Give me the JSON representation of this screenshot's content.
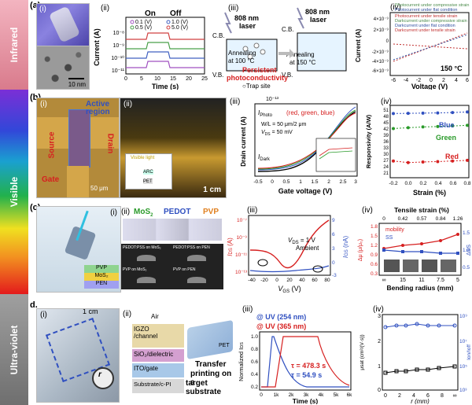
{
  "bands": {
    "infrared": "Infrared",
    "visible": "Visible",
    "ultraviolet": "Ultra-violet"
  },
  "colors": {
    "infrared_band": "#d97b8c",
    "visible_top": "#8a2be2",
    "visible_mid": "#27b34a",
    "visible_bot": "#e31a1c",
    "uv_band": "#8c8c8c"
  },
  "panel_a": {
    "letter": "(a)",
    "sub_i": "(i)",
    "sub_ii": "(ii)",
    "sub_iii": "(iii)",
    "sub_iv": "(iv)",
    "scalebar": "10 nm",
    "ii": {
      "on": "On",
      "off": "Off",
      "xlabel": "Time (s)",
      "ylabel": "Current (A)",
      "legend": [
        "0.1 (V)",
        "1.0 (V)",
        "0.5 (V)",
        "5.0 (V)"
      ],
      "xticks": [
        "0",
        "5",
        "10",
        "15",
        "20",
        "25"
      ],
      "yticks": [
        "10⁻⁸",
        "10⁻⁹",
        "10⁻¹⁰",
        "10⁻¹¹"
      ]
    },
    "iii": {
      "laser1": "808 nm",
      "laser1b": "laser",
      "laser2": "808 nm",
      "laser2b": "laser",
      "cb1": "C.B.",
      "vb1": "V.B.",
      "cb2": "C.B.",
      "vb2": "V.B.",
      "anneal1": "Annealing",
      "anneal1b": "at 100 °C",
      "anneal2": "Annealing",
      "anneal2b": "at 150 °C",
      "ppc1": "Persistent",
      "ppc2": "photoconductivity",
      "trap": "○Trap site"
    },
    "iv": {
      "legend": [
        "Photocurrent under compressive strain",
        "Photocurrent under flat condition",
        "Photocurrent under tensile strain",
        "Darkcurrent under compressive strain",
        "Darkcurrent under flat condition",
        "Darkcurrent under tensile strain"
      ],
      "ylabel": "Current (A)",
      "xlabel": "Voltage (V)",
      "temp": "150 °C",
      "yticks": [
        "4×10⁻⁹",
        "2×10⁻⁹",
        "0",
        "-2×10⁻⁹",
        "-4×10⁻⁹",
        "-6×10⁻⁹"
      ],
      "xticks": [
        "-6",
        "-4",
        "-2",
        "0",
        "2",
        "4",
        "6"
      ]
    }
  },
  "panel_b": {
    "letter": "(b)",
    "sub_i": "(i)",
    "sub_ii": "(ii)",
    "sub_iii": "(iii)",
    "sub_iv": "(iv)",
    "source": "Source",
    "drain": "Drain",
    "gate": "Gate",
    "active": "Active",
    "active2": "region",
    "scalebar": "50 μm",
    "visible_light": "Visible light",
    "cm": "1 cm",
    "arc": "ARC",
    "pet": "PET",
    "iii": {
      "exp": "10⁻¹³",
      "iphoto": "I",
      "iphoto_sub": "Photo",
      "rgb": "(red, green, blue)",
      "wl": "W/L = 50 μm/2 μm",
      "vds": "V",
      "vds_sub": "DS",
      "vds_val": " = 50 mV",
      "idark": "I",
      "idark_sub": "Dark",
      "xlabel": "Gate voltage (V)",
      "ylabel": "Drain current (A)",
      "xticks": [
        "-0.5",
        "0",
        "0.5",
        "1",
        "1.5",
        "2",
        "2.5",
        "3"
      ]
    },
    "iv": {
      "ylabel": "Responsivity (A/W)",
      "xlabel": "Strain (%)",
      "blue": "Blue",
      "green": "Green",
      "red": "Red",
      "yticks": [
        "51",
        "48",
        "45",
        "42",
        "39",
        "36",
        "33",
        "30",
        "27",
        "24",
        "21",
        "18"
      ],
      "xticks": [
        "-0.2",
        "0.0",
        "0.2",
        "0.4",
        "0.6",
        "0.8"
      ],
      "chart_data": {
        "type": "scatter",
        "x": [
          -0.2,
          0,
          0.2,
          0.4,
          0.6,
          0.8
        ],
        "series": [
          {
            "name": "Blue",
            "values": [
              48.5,
              48.6,
              48.7,
              48.8,
              49.0,
              49.3
            ]
          },
          {
            "name": "Green",
            "values": [
              41.0,
              41.4,
              41.8,
              42.0,
              42.3,
              42.6
            ]
          },
          {
            "name": "Red",
            "values": [
              24.8,
              24.0,
              24.3,
              24.5,
              24.8,
              25.1
            ]
          }
        ],
        "xlabel": "Strain (%)",
        "ylabel": "Responsivity (A/W)"
      }
    }
  },
  "panel_c": {
    "letter": "(c)",
    "sub_i": "(i)",
    "sub_ii": "(ii)",
    "sub_iii": "(iii)",
    "sub_iv": "(iv)",
    "mos2": "MoS",
    "pedot": "PEDOT",
    "pvp": "PVP",
    "layers": [
      "PVP",
      "MoS₂",
      "PEN"
    ],
    "photo_labels": [
      "PEDOT:PSS on MoS₂",
      "PEDOT:PSS on PEN",
      "PVP on MoS₂",
      "PVP on PEN"
    ],
    "iii": {
      "vds": "V",
      "vds_sub": "DS",
      "vds_val": " = 1 V",
      "ambient": "Ambient",
      "ylabel": "I",
      "ylabel_sub": "DS",
      "ylabel_unit": " (A)",
      "y2label": "I",
      "y2label_sub": "GS",
      "y2label_unit": " (nA)",
      "xlabel": "V",
      "xlabel_sub": "GS",
      "xlabel_unit": " (V)",
      "xticks": [
        "-40",
        "-20",
        "0",
        "20",
        "40",
        "60",
        "80"
      ],
      "yticks": [
        "10⁻⁷",
        "10⁻⁹",
        "10⁻¹¹",
        "10⁻¹³"
      ],
      "y2ticks": [
        "9",
        "6",
        "3",
        "0",
        "-3"
      ]
    },
    "iv": {
      "title": "Tensile strain (%)",
      "top_ticks": [
        "0",
        "0.42",
        "0.57",
        "0.84",
        "1.26"
      ],
      "mobility": "mobility",
      "ss": "SS",
      "xlabel": "Bending radius (mm)",
      "xticks": [
        "∞",
        "15",
        "11",
        "7.5",
        "5"
      ],
      "yticks": [
        "1.8",
        "1.5",
        "1.2",
        "0.9",
        "0.6",
        "0.3"
      ],
      "y2ticks": [
        "1.5",
        "1.0",
        "0.5"
      ],
      "ylabel": "Δμ (μ/μ₀)",
      "y2label": "ΔSS"
    }
  },
  "panel_d": {
    "letter": "d.",
    "sub_i": "(i)",
    "sub_ii": "(ii)",
    "sub_iii": "(iii)",
    "sub_iv": "(iv)",
    "cm": "1 cm",
    "r": "r",
    "layers": [
      "Air",
      "IGZO\n/channel",
      "SiO₂/dielectric",
      "ITO/gate",
      "Substrate/c-PI"
    ],
    "transfer1": "Transfer",
    "transfer2": "printing on a",
    "transfer3": "target substrate",
    "pet": "PET",
    "iii": {
      "uv1": "@ UV (254 nm)",
      "uv2": "@ UV (365 nm)",
      "tau1": "τ = 478.3 s",
      "tau2": "τ = 54.9 s",
      "ylabel": "Normalized I",
      "ylabel_sub": "DS",
      "xlabel": "Time (s)",
      "xticks": [
        "0",
        "1k",
        "2k",
        "3k",
        "4k",
        "5k",
        "6k"
      ],
      "yticks": [
        "1.0",
        "0.8",
        "0.6",
        "0.4",
        "0.2"
      ]
    },
    "iv": {
      "ylabel": "μsat (cm²/(V·s))",
      "y2label": "Ion/Ioff",
      "xlabel": "r (mm)",
      "xticks": [
        "0",
        "2",
        "4",
        "6",
        "8",
        "∞"
      ],
      "yticks": [
        "3",
        "2",
        "1",
        "0"
      ],
      "y2ticks": [
        "10⁹",
        "10⁷",
        "10⁵",
        "10³"
      ]
    }
  }
}
